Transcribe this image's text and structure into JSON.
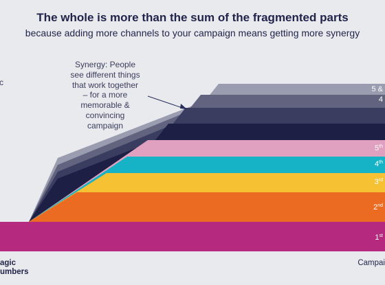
{
  "header": {
    "title": "The whole is more than the sum of the fragmented parts",
    "subtitle": "because adding more channels to your campaign means getting more synergy"
  },
  "left_edge_fragment": "c",
  "annotation": {
    "lines": [
      "Synergy: People",
      "see different things",
      "that work together",
      "– for a  more",
      "memorable &",
      "convincing",
      "campaign"
    ]
  },
  "footer": {
    "brand_line1": "agic",
    "brand_line2": "umbers",
    "right_label": "Campai"
  },
  "colors": {
    "background": "#e9eaee",
    "arrow": "#2a2c5a"
  },
  "chart_data": {
    "type": "area",
    "layers": [
      {
        "name": "1st",
        "label_main": "1",
        "label_sup": "st",
        "color": "#b5297e",
        "label_color": "#ffffff"
      },
      {
        "name": "2nd",
        "label_main": "2",
        "label_sup": "nd",
        "color": "#ec6b22",
        "label_color": "#ffffff"
      },
      {
        "name": "3rd",
        "label_main": "3",
        "label_sup": "rd",
        "color": "#f6c233",
        "label_color": "#ffffff"
      },
      {
        "name": "4th",
        "label_main": "4",
        "label_sup": "th",
        "color": "#15b3c5",
        "label_color": "#ffffff"
      },
      {
        "name": "5th",
        "label_main": "5",
        "label_sup": "th",
        "color": "#e0a0bf",
        "label_color": "#ffffff"
      },
      {
        "name": "synergy-1",
        "label_main": "",
        "label_sup": "",
        "color": "#1d1f45",
        "label_color": "#ffffff"
      },
      {
        "name": "synergy-2",
        "label_main": "",
        "label_sup": "",
        "color": "#3b3d60",
        "label_color": "#ffffff"
      },
      {
        "name": "synergy-3",
        "label_main": "4",
        "label_sup": "",
        "color": "#62647f",
        "label_color": "#ffffff"
      },
      {
        "name": "synergy-4",
        "label_main": "5 &",
        "label_sup": "",
        "color": "#9a9cb0",
        "label_color": "#ffffff"
      }
    ]
  }
}
